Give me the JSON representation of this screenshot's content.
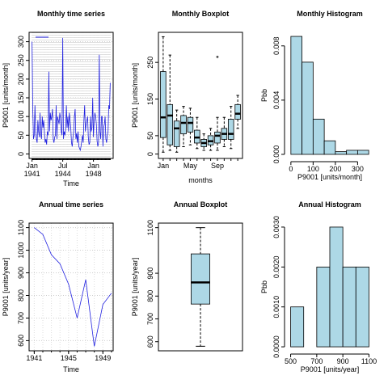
{
  "chart_data": [
    {
      "type": "line",
      "title": "Monthly time series",
      "xlabel": "Time",
      "ylabel": "P9001 [units/month]",
      "color": "#2020e0",
      "grid": true,
      "x": [
        "1941-01",
        "1941-02",
        "1941-03",
        "1941-04",
        "1941-05",
        "1941-06",
        "1941-07",
        "1941-08",
        "1941-09",
        "1941-10",
        "1941-11",
        "1941-12",
        "1942-01",
        "1942-02",
        "1942-03",
        "1942-04",
        "1942-05",
        "1942-06",
        "1942-07",
        "1942-08",
        "1942-09",
        "1942-10",
        "1942-11",
        "1942-12",
        "1943-01",
        "1943-02",
        "1943-03",
        "1943-04",
        "1943-05",
        "1943-06",
        "1943-07",
        "1943-08",
        "1943-09",
        "1943-10",
        "1943-11",
        "1943-12",
        "1944-01",
        "1944-02",
        "1944-03",
        "1944-04",
        "1944-05",
        "1944-06",
        "1944-07",
        "1944-08",
        "1944-09",
        "1944-10",
        "1944-11",
        "1944-12",
        "1945-01",
        "1945-02",
        "1945-03",
        "1945-04",
        "1945-05",
        "1945-06",
        "1945-07",
        "1945-08",
        "1945-09",
        "1945-10",
        "1945-11",
        "1945-12",
        "1946-01",
        "1946-02",
        "1946-03",
        "1946-04",
        "1946-05",
        "1946-06",
        "1946-07",
        "1946-08",
        "1946-09",
        "1946-10",
        "1946-11",
        "1946-12",
        "1947-01",
        "1947-02",
        "1947-03",
        "1947-04",
        "1947-05",
        "1947-06",
        "1947-07",
        "1947-08",
        "1947-09",
        "1947-10",
        "1947-11",
        "1947-12",
        "1948-01",
        "1948-02",
        "1948-03",
        "1948-04",
        "1948-05",
        "1948-06",
        "1948-07",
        "1948-08",
        "1948-09",
        "1948-10",
        "1948-11",
        "1948-12",
        "1949-01",
        "1949-02",
        "1949-03",
        "1949-04",
        "1949-05",
        "1949-06",
        "1949-07",
        "1949-08",
        "1949-09",
        "1949-10",
        "1949-11",
        "1949-12"
      ],
      "values": [
        300,
        120,
        40,
        50,
        130,
        60,
        40,
        30,
        90,
        60,
        45,
        110,
        50,
        40,
        100,
        70,
        90,
        55,
        30,
        40,
        25,
        60,
        50,
        220,
        60,
        110,
        90,
        100,
        120,
        40,
        30,
        45,
        50,
        130,
        40,
        100,
        90,
        80,
        110,
        95,
        60,
        50,
        310,
        40,
        60,
        50,
        65,
        130,
        70,
        100,
        60,
        110,
        90,
        70,
        30,
        20,
        45,
        60,
        100,
        120,
        40,
        55,
        30,
        60,
        20,
        15,
        10,
        20,
        35,
        50,
        30,
        90,
        130,
        60,
        80,
        90,
        100,
        45,
        25,
        30,
        100,
        60,
        70,
        150,
        45,
        90,
        110,
        100,
        80,
        35,
        20,
        30,
        265,
        60,
        40,
        100,
        100,
        20,
        70,
        80,
        100,
        40,
        30,
        50,
        60,
        130,
        120,
        190
      ],
      "xlim": [
        "1940-09",
        "1950-04"
      ],
      "xticks": [
        {
          "value": "1941-01",
          "label": "Jan 1941"
        },
        {
          "value": "1944-07",
          "label": "Jul 1944"
        },
        {
          "value": "1948-01",
          "label": "Jan 1948"
        }
      ],
      "ylim": [
        -12,
        325
      ],
      "yticks": [
        0,
        50,
        100,
        150,
        200,
        250,
        300
      ]
    },
    {
      "type": "boxplot",
      "title": "Monthly Boxplot",
      "xlabel": "months",
      "ylabel": "P9001 [units/month]",
      "color": "#add8e6",
      "categories": [
        "Jan",
        null,
        null,
        null,
        "May",
        null,
        null,
        null,
        "Sep",
        null,
        null,
        null
      ],
      "boxes": [
        {
          "min": 5,
          "q1": 45,
          "median": 100,
          "q3": 225,
          "max": 320,
          "outliers": []
        },
        {
          "min": 10,
          "q1": 25,
          "median": 105,
          "q3": 135,
          "max": 270,
          "outliers": []
        },
        {
          "min": 5,
          "q1": 20,
          "median": 70,
          "q3": 90,
          "max": 120,
          "outliers": []
        },
        {
          "min": 20,
          "q1": 55,
          "median": 85,
          "q3": 105,
          "max": 130,
          "outliers": []
        },
        {
          "min": 25,
          "q1": 60,
          "median": 85,
          "q3": 100,
          "max": 125,
          "outliers": []
        },
        {
          "min": 15,
          "q1": 30,
          "median": 45,
          "q3": 65,
          "max": 100,
          "outliers": []
        },
        {
          "min": 10,
          "q1": 20,
          "median": 30,
          "q3": 40,
          "max": 55,
          "outliers": []
        },
        {
          "min": 10,
          "q1": 25,
          "median": 35,
          "q3": 50,
          "max": 70,
          "outliers": []
        },
        {
          "min": 10,
          "q1": 30,
          "median": 50,
          "q3": 60,
          "max": 100,
          "outliers": [
            265
          ]
        },
        {
          "min": 20,
          "q1": 40,
          "median": 55,
          "q3": 70,
          "max": 100,
          "outliers": []
        },
        {
          "min": 15,
          "q1": 40,
          "median": 55,
          "q3": 95,
          "max": 130,
          "outliers": []
        },
        {
          "min": 70,
          "q1": 95,
          "median": 110,
          "q3": 135,
          "max": 160,
          "outliers": []
        }
      ],
      "ylim": [
        -12,
        332
      ],
      "yticks": [
        0,
        50,
        150,
        250
      ]
    },
    {
      "type": "histogram",
      "title": "Monthly Histogram",
      "xlabel": "P9001 [units/month]",
      "ylabel": "Pbb",
      "color": "#add8e6",
      "bins": [
        0,
        50,
        100,
        150,
        200,
        250,
        300,
        350
      ],
      "values": [
        0.0087,
        0.0068,
        0.0026,
        0.001,
        0.0002,
        0.0003,
        0.0003
      ],
      "xlim": [
        -14,
        364
      ],
      "xticks": [
        0,
        100,
        200,
        300
      ],
      "ylim": [
        -0.0003,
        0.009
      ],
      "yticks": [
        {
          "value": 0,
          "label": "0.000"
        },
        {
          "value": 0.004,
          "label": "0.004"
        },
        {
          "value": 0.008,
          "label": "0.008"
        }
      ]
    },
    {
      "type": "line",
      "title": "Annual time series",
      "xlabel": "Time",
      "ylabel": "P9001 [units/year]",
      "color": "#2020e0",
      "grid": true,
      "x": [
        1941,
        1942,
        1943,
        1944,
        1945,
        1946,
        1947,
        1948,
        1949,
        1950
      ],
      "values": [
        1100,
        1070,
        980,
        940,
        850,
        700,
        870,
        575,
        760,
        810
      ],
      "xlim": [
        1940.4,
        1950.2
      ],
      "xticks": [
        1941,
        1945,
        1949
      ],
      "ylim": [
        555,
        1120
      ],
      "yticks": [
        600,
        700,
        800,
        900,
        1000,
        1100
      ]
    },
    {
      "type": "boxplot",
      "title": "Annual Boxplot",
      "ylabel": "P9001 [units/year]",
      "color": "#add8e6",
      "boxes": [
        {
          "min": 580,
          "q1": 765,
          "median": 860,
          "q3": 985,
          "max": 1100,
          "outliers": []
        }
      ],
      "ylim": [
        560,
        1120
      ],
      "yticks": [
        600,
        700,
        800,
        900,
        1100
      ]
    },
    {
      "type": "histogram",
      "title": "Annual Histogram",
      "xlabel": "P9001 [units/year]",
      "ylabel": "Pbb",
      "color": "#add8e6",
      "bins": [
        500,
        600,
        700,
        800,
        900,
        1000,
        1100
      ],
      "values": [
        0.001,
        0,
        0.002,
        0.003,
        0.002,
        0.002
      ],
      "xlim": [
        478,
        1122
      ],
      "xticks": [
        500,
        700,
        900,
        1100
      ],
      "ylim": [
        -0.0001,
        0.0031
      ],
      "yticks": [
        {
          "value": 0,
          "label": "0.0000"
        },
        {
          "value": 0.001,
          "label": "0.0010"
        },
        {
          "value": 0.002,
          "label": "0.0020"
        },
        {
          "value": 0.003,
          "label": "0.0030"
        }
      ]
    }
  ]
}
